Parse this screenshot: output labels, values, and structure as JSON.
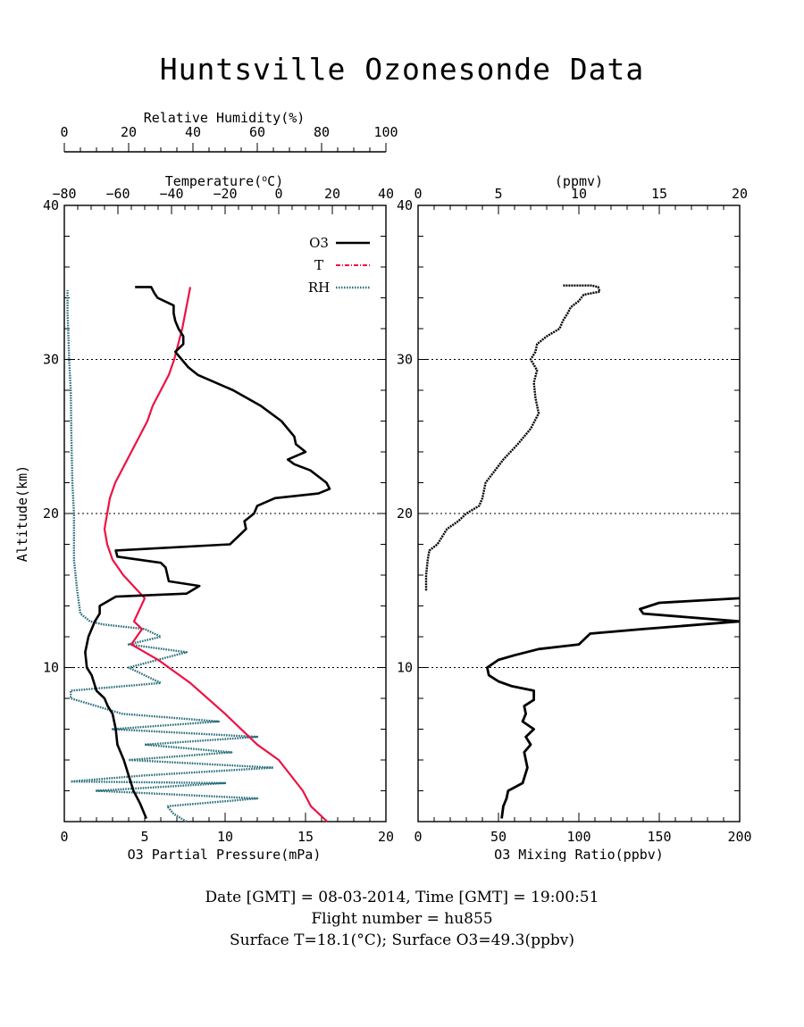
{
  "title": "Huntsville Ozonesonde Data",
  "footer": {
    "line1": "Date [GMT] = 08-03-2014,  Time [GMT] = 19:00:51",
    "line2": "Flight number = hu855",
    "line3": "Surface T=18.1(°C); Surface O3=49.3(ppbv)"
  },
  "colors": {
    "o3": "#000000",
    "temperature": "#ee1144",
    "rh": "#2a6f7c"
  },
  "chart_data": [
    {
      "type": "line",
      "panel": "left",
      "title": "",
      "ylabel": "Altitude(km)",
      "ylim": [
        0,
        40
      ],
      "yticks": [
        10,
        20,
        30,
        40
      ],
      "xlabel_bottom": "O3 Partial Pressure(mPa)",
      "xlim_bottom": [
        0,
        20
      ],
      "xticks_bottom": [
        0,
        5,
        10,
        15,
        20
      ],
      "xlabel_top_inner": "Temperature(°C)",
      "xlim_top_inner": [
        -80,
        40
      ],
      "xticks_top_inner": [
        -80,
        -60,
        -40,
        -20,
        0,
        20,
        40
      ],
      "xlabel_top_outer": "Relative Humidity(%)",
      "xlim_top_outer": [
        0,
        100
      ],
      "xticks_top_outer": [
        0,
        20,
        40,
        60,
        80,
        100
      ],
      "grid": "dotted horizontal lines at 10, 20, 30 km",
      "legend_position": "top-right",
      "legend": [
        "O3",
        "T",
        "RH"
      ],
      "series": [
        {
          "name": "O3",
          "axis": "bottom",
          "x": [
            5.1,
            4.7,
            4.3,
            4.0,
            3.7,
            3.3,
            3.2,
            3.0,
            2.7,
            2.5,
            2.0,
            1.7,
            1.4,
            1.3,
            1.4,
            1.5,
            1.7,
            1.9,
            2.2,
            2.2,
            3.2,
            7.6,
            8.4,
            6.5,
            6.3,
            6.0,
            3.3,
            3.2,
            10.3,
            11.3,
            11.2,
            11.8,
            12.0,
            13.1,
            15.8,
            16.5,
            16.3,
            15.3,
            14.3,
            13.9,
            15.0,
            14.4,
            14.3,
            13.5,
            12.2,
            10.5,
            8.3,
            7.7,
            7.3,
            6.9,
            7.4,
            7.4,
            7.1,
            6.9,
            6.8,
            6.8,
            5.8,
            5.6,
            5.4,
            5.0,
            4.4
          ],
          "y": [
            0.2,
            1.2,
            2.0,
            3.0,
            4.0,
            5.0,
            6.0,
            7.0,
            7.5,
            8.0,
            8.5,
            9.5,
            10.0,
            11.0,
            11.5,
            12.0,
            12.5,
            13.0,
            13.5,
            14.0,
            14.6,
            14.8,
            15.3,
            15.6,
            16.5,
            16.8,
            17.2,
            17.6,
            18.0,
            19.0,
            19.5,
            20.0,
            20.5,
            21.0,
            21.3,
            21.6,
            22.0,
            22.8,
            23.2,
            23.5,
            24.0,
            24.5,
            25.0,
            26.0,
            27.0,
            28.0,
            29.0,
            29.5,
            30.0,
            30.5,
            31.0,
            31.5,
            32.0,
            32.5,
            33.0,
            33.5,
            34.0,
            34.3,
            34.7,
            34.7,
            34.7
          ]
        },
        {
          "name": "T",
          "axis": "top_inner",
          "x": [
            18.1,
            12.0,
            9.0,
            0.0,
            -8.0,
            -20.0,
            -33.0,
            -45.0,
            -55.0,
            -51.0,
            -54.0,
            -50.0,
            -58.0,
            -62.0,
            -64.0,
            -65.0,
            -64.0,
            -63.0,
            -61.0,
            -58.0,
            -55.0,
            -52.0,
            -49.0,
            -47.0,
            -44.0,
            -41.0,
            -39.0,
            -36.0,
            -33.0
          ],
          "y": [
            0.0,
            1.0,
            2.0,
            4.0,
            5.0,
            7.0,
            9.0,
            10.5,
            11.5,
            12.5,
            13.0,
            14.5,
            16.0,
            17.0,
            18.0,
            19.0,
            20.0,
            21.0,
            22.0,
            23.0,
            24.0,
            25.0,
            26.0,
            27.0,
            28.0,
            29.0,
            30.0,
            32.0,
            34.7
          ]
        },
        {
          "name": "RH",
          "axis": "top_outer",
          "x": [
            38,
            34,
            32,
            60,
            10,
            50,
            2,
            25,
            65,
            20,
            52,
            25,
            60,
            15,
            48,
            18,
            10,
            2,
            2,
            30,
            20,
            38,
            20,
            30,
            25,
            12,
            8,
            5,
            4,
            3,
            3,
            2.5,
            2.2,
            2.0,
            1.5,
            1.2,
            1.0,
            1.0,
            1.0
          ],
          "y": [
            0.0,
            0.5,
            1.0,
            1.5,
            2.0,
            2.5,
            2.6,
            3.0,
            3.5,
            4.0,
            4.5,
            5.0,
            5.5,
            6.0,
            6.5,
            7.0,
            7.5,
            8.0,
            8.5,
            9.0,
            10.0,
            11.0,
            11.5,
            12.0,
            12.5,
            12.8,
            13.0,
            13.5,
            15.0,
            17.0,
            20.0,
            22.0,
            25.0,
            28.0,
            30.0,
            32.0,
            33.0,
            34.0,
            34.5
          ]
        }
      ]
    },
    {
      "type": "line",
      "panel": "right",
      "title": "",
      "ylim": [
        0,
        40
      ],
      "yticks": [
        10,
        20,
        30,
        40
      ],
      "xlabel_bottom": "O3 Mixing Ratio(ppbv)",
      "xlim_bottom": [
        0,
        200
      ],
      "xticks_bottom": [
        0,
        50,
        100,
        150,
        200
      ],
      "xlabel_top": "(ppmv)",
      "xlim_top": [
        0,
        20
      ],
      "xticks_top": [
        0,
        5,
        10,
        15,
        20
      ],
      "grid": "dotted horizontal lines at 10, 20, 30 km",
      "series": [
        {
          "name": "O3",
          "axis": "bottom",
          "x": [
            52,
            53,
            55,
            56,
            65,
            68,
            66,
            70,
            67,
            72,
            65,
            67,
            66,
            72,
            72,
            58,
            50,
            44,
            43,
            50,
            60,
            75,
            100,
            105,
            107,
            140,
            200,
            140,
            138,
            150,
            200,
            202
          ],
          "y": [
            0.2,
            1.0,
            1.5,
            2.0,
            2.5,
            3.5,
            4.5,
            5.0,
            5.5,
            6.0,
            6.5,
            7.0,
            7.5,
            7.9,
            8.5,
            8.8,
            9.1,
            9.5,
            10.0,
            10.5,
            10.8,
            11.2,
            11.5,
            12.0,
            12.2,
            12.5,
            13.0,
            13.5,
            13.8,
            14.2,
            14.5,
            14.6
          ]
        },
        {
          "name": "O3",
          "axis": "top",
          "x": [
            0.5,
            0.5,
            0.6,
            0.7,
            1.2,
            1.8,
            2.5,
            3.0,
            3.8,
            4.0,
            4.2,
            5.3,
            6.2,
            7.0,
            7.5,
            7.3,
            7.2,
            7.4,
            7.0,
            7.3,
            7.4,
            8.0,
            8.8,
            9.0,
            9.3,
            9.5,
            10.0,
            10.3,
            11.3,
            11.2,
            10.8,
            10.5,
            9.0
          ],
          "y": [
            15.0,
            16.0,
            17.0,
            17.6,
            18.0,
            19.0,
            19.5,
            20.0,
            20.5,
            21.0,
            22.0,
            23.5,
            24.5,
            25.5,
            26.5,
            27.5,
            28.5,
            29.3,
            30.0,
            30.5,
            31.0,
            31.5,
            32.0,
            32.5,
            33.0,
            33.4,
            33.8,
            34.2,
            34.4,
            34.7,
            34.8,
            34.8,
            34.8
          ]
        }
      ]
    }
  ]
}
